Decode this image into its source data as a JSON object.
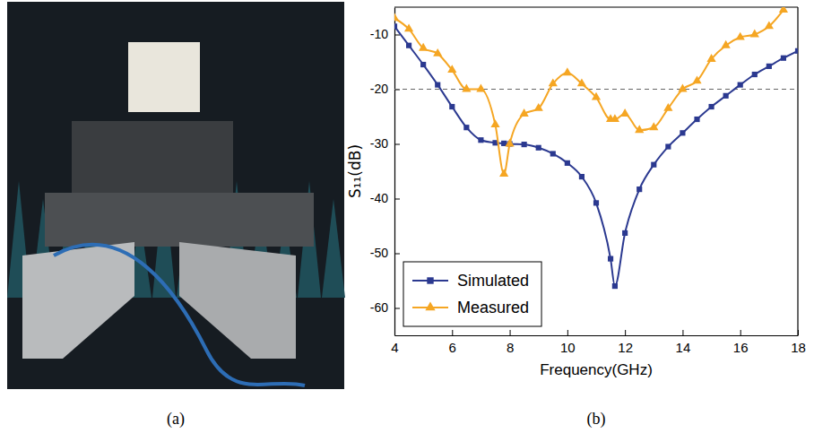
{
  "captions": [
    "(a)",
    "(b)"
  ],
  "chart_data": {
    "type": "line",
    "x_label": "Frequency(GHz)",
    "y_label": "S₁₁(dB)",
    "x": [
      4,
      4.5,
      5,
      5.5,
      6,
      6.5,
      7,
      7.5,
      7.8,
      8,
      8.5,
      9,
      9.5,
      10,
      10.5,
      11,
      11.5,
      11.65,
      12,
      12.5,
      13,
      13.5,
      14,
      14.5,
      15,
      15.5,
      16,
      16.5,
      17,
      17.5,
      18
    ],
    "series": [
      {
        "name": "Simulated",
        "color": "#2b3990",
        "marker": "square",
        "line_style": "solid",
        "values": [
          -8.5,
          -12,
          -15.5,
          -19.2,
          -23.2,
          -27,
          -29.3,
          -29.8,
          -29.9,
          -30,
          -30.1,
          -30.7,
          -31.8,
          -33.5,
          -36,
          -40.8,
          -51,
          -56,
          -46.3,
          -38.3,
          -33.8,
          -30.5,
          -28,
          -25.5,
          -23.2,
          -21.2,
          -19.2,
          -17.3,
          -15.8,
          -14.3,
          -13
        ]
      },
      {
        "name": "Measured",
        "color": "#f5a623",
        "marker": "triangle",
        "line_style": "solid",
        "values": [
          -7,
          -9,
          -12.5,
          -13.5,
          -16.5,
          -20,
          -20,
          -26.5,
          -35.5,
          -30,
          -24.5,
          -23.5,
          -19,
          -17,
          -19,
          -21.5,
          -25.5,
          -25.5,
          -24.5,
          -27.5,
          -27,
          -23.5,
          -20,
          -18.5,
          -14.5,
          -12,
          -10.5,
          -10,
          -8.5,
          -5.5,
          null
        ]
      }
    ],
    "threshold": -20,
    "xlim": [
      4,
      18
    ],
    "xticks": [
      4,
      6,
      8,
      10,
      12,
      14,
      16,
      18
    ],
    "ylim": [
      -65,
      -5
    ],
    "yticks": [
      -60,
      -50,
      -40,
      -30,
      -20,
      -10
    ],
    "grid": false,
    "legend": "lower left"
  }
}
